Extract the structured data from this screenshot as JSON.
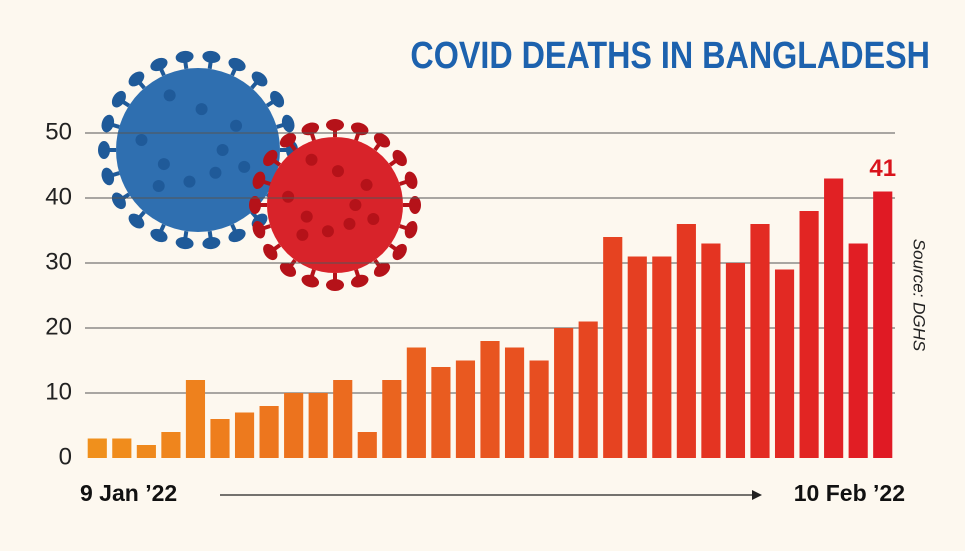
{
  "chart_data": {
    "type": "bar",
    "title": "COVID DEATHS IN BANGLADESH",
    "source": "Source: DGHS",
    "categories": [
      "9 Jan ’22",
      null,
      null,
      null,
      null,
      null,
      null,
      null,
      null,
      null,
      null,
      null,
      null,
      null,
      null,
      null,
      null,
      null,
      null,
      null,
      null,
      null,
      null,
      null,
      null,
      null,
      null,
      null,
      null,
      null,
      null,
      null,
      "10 Feb ’22"
    ],
    "values": [
      3,
      3,
      2,
      4,
      12,
      6,
      7,
      8,
      10,
      10,
      12,
      4,
      12,
      17,
      14,
      15,
      18,
      17,
      15,
      20,
      21,
      34,
      31,
      31,
      36,
      33,
      30,
      36,
      29,
      38,
      43,
      33,
      41
    ],
    "colors": [
      "#f0901c",
      "#e01a24"
    ],
    "label_color": "#d9141c",
    "ylim": [
      0,
      50
    ],
    "yticks": [
      0,
      10,
      20,
      30,
      40,
      50
    ],
    "grid": true
  }
}
